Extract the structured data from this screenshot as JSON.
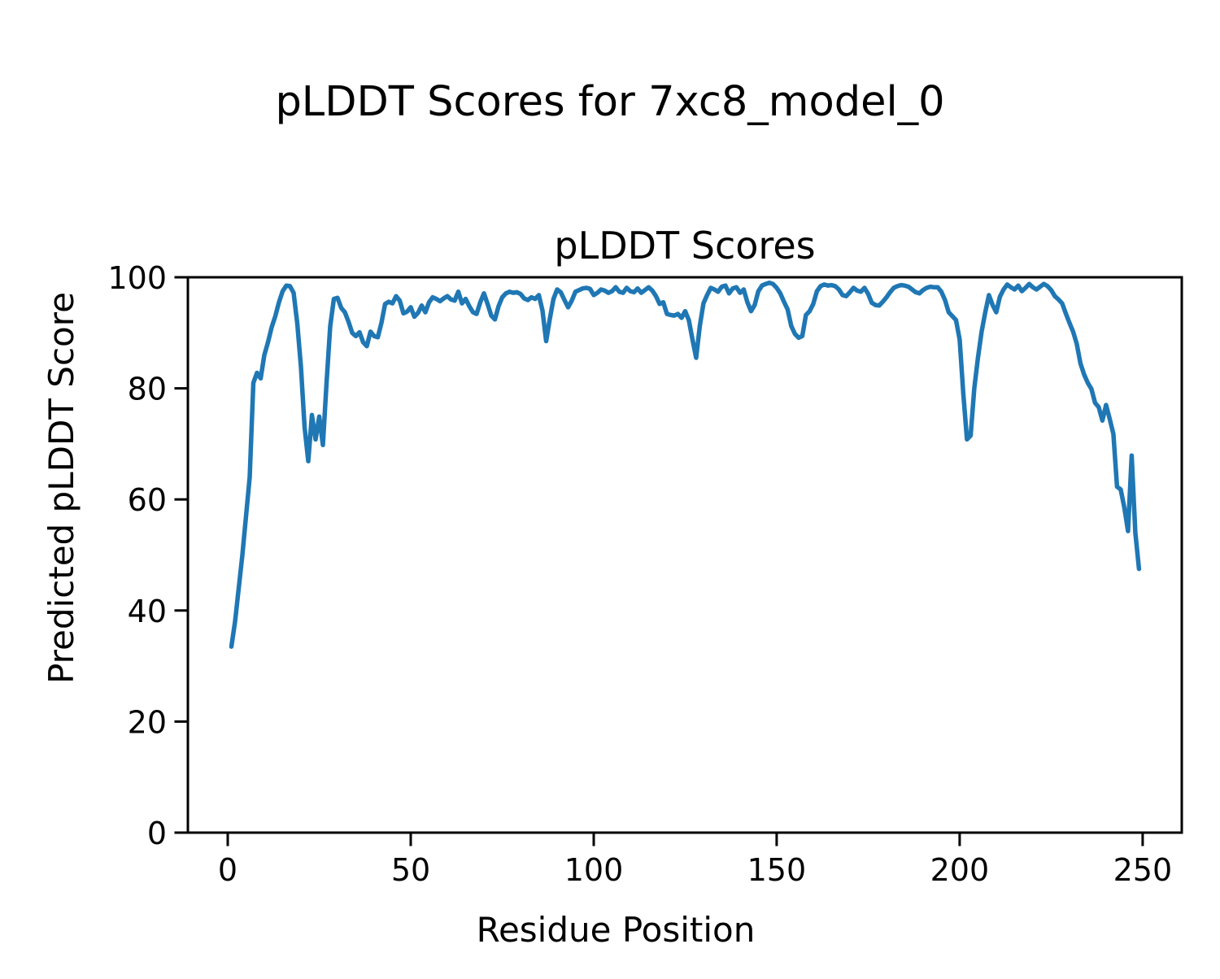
{
  "figure": {
    "suptitle": "pLDDT Scores for 7xc8_model_0"
  },
  "axes": {
    "title": "pLDDT Scores",
    "xlabel": "Residue Position",
    "ylabel": "Predicted pLDDT Score",
    "x_ticks": [
      0,
      50,
      100,
      150,
      200,
      250
    ],
    "y_ticks": [
      0,
      20,
      40,
      60,
      80,
      100
    ]
  },
  "colors": {
    "line": "#1f77b4",
    "text": "#000000",
    "background": "#ffffff",
    "spine": "#000000"
  },
  "chart_data": {
    "type": "line",
    "title": "pLDDT Scores",
    "xlabel": "Residue Position",
    "ylabel": "Predicted pLDDT Score",
    "xlim": [
      -10.9,
      260.7
    ],
    "ylim": [
      0,
      100
    ],
    "grid": false,
    "legend": null,
    "x_start": 1,
    "x_step": 1,
    "series_name": "pLDDT per residue",
    "values": [
      33.5,
      38,
      44,
      50,
      57,
      64,
      81,
      82.8,
      81.8,
      86,
      88.3,
      91,
      93,
      95.5,
      97.5,
      98.5,
      98.4,
      97.2,
      91.7,
      83.9,
      73,
      66.9,
      75.2,
      70.8,
      74.9,
      69.8,
      81,
      91.2,
      96.1,
      96.3,
      94.5,
      93.7,
      92,
      90,
      89.4,
      90.1,
      88.3,
      87.6,
      90.2,
      89.4,
      89.2,
      91.8,
      95.2,
      95.6,
      95.3,
      96.6,
      95.8,
      93.5,
      93.8,
      94.6,
      92.9,
      93.6,
      94.9,
      93.7,
      95.5,
      96.4,
      96.1,
      95.7,
      96.2,
      96.6,
      96,
      95.8,
      97.4,
      95.3,
      96.1,
      94.8,
      93.7,
      93.4,
      95.5,
      97.1,
      95.2,
      93.1,
      92.4,
      94.8,
      96.4,
      97.1,
      97.4,
      97.2,
      97.3,
      97,
      96.2,
      95.9,
      96.4,
      96.1,
      96.8,
      94,
      88.5,
      92.5,
      96.1,
      97.8,
      97.3,
      95.9,
      94.6,
      95.8,
      97.4,
      97.7,
      98,
      98.1,
      97.9,
      96.8,
      97.2,
      97.8,
      97.6,
      97.2,
      97.5,
      98.2,
      97.4,
      97.2,
      98.1,
      97.5,
      97.3,
      98,
      97.2,
      97.7,
      98.2,
      97.6,
      96.6,
      95.2,
      95.5,
      93.4,
      93.2,
      93.1,
      93.4,
      92.7,
      93.9,
      92.3,
      88.8,
      85.5,
      91.2,
      95.3,
      96.8,
      98.1,
      97.8,
      97.4,
      98.3,
      98.5,
      97.1,
      98,
      98.2,
      97.2,
      97.8,
      95.5,
      93.9,
      95,
      97.5,
      98.5,
      98.8,
      99,
      98.8,
      98.1,
      97.1,
      95.6,
      94.2,
      91.2,
      89.8,
      89.1,
      89.4,
      93.2,
      93.9,
      95.2,
      97.5,
      98.4,
      98.7,
      98.5,
      98.6,
      98.4,
      97.8,
      96.8,
      96.6,
      97.3,
      98.1,
      97.6,
      97.4,
      98.1,
      97,
      95.4,
      95,
      94.9,
      95.6,
      96.4,
      97.3,
      98.1,
      98.4,
      98.6,
      98.5,
      98.3,
      97.8,
      97.3,
      97.1,
      97.7,
      98.1,
      98.3,
      98.2,
      98.2,
      97.4,
      95.9,
      93.7,
      93,
      92.3,
      88.8,
      79,
      70.8,
      71.5,
      80,
      85.5,
      90.2,
      93.7,
      96.8,
      95,
      93.7,
      96.5,
      97.8,
      98.7,
      98.2,
      97.8,
      98.5,
      97.5,
      98.1,
      98.8,
      98.2,
      97.8,
      98.3,
      98.8,
      98.4,
      97.7,
      96.6,
      96,
      95.3,
      93.5,
      91.8,
      90.2,
      88,
      84.5,
      82.5,
      81,
      79.9,
      77.4,
      76.6,
      74.2,
      77,
      74.5,
      71.8,
      62.3,
      61.8,
      58.5,
      54.3,
      67.9,
      54,
      47.5
    ]
  }
}
